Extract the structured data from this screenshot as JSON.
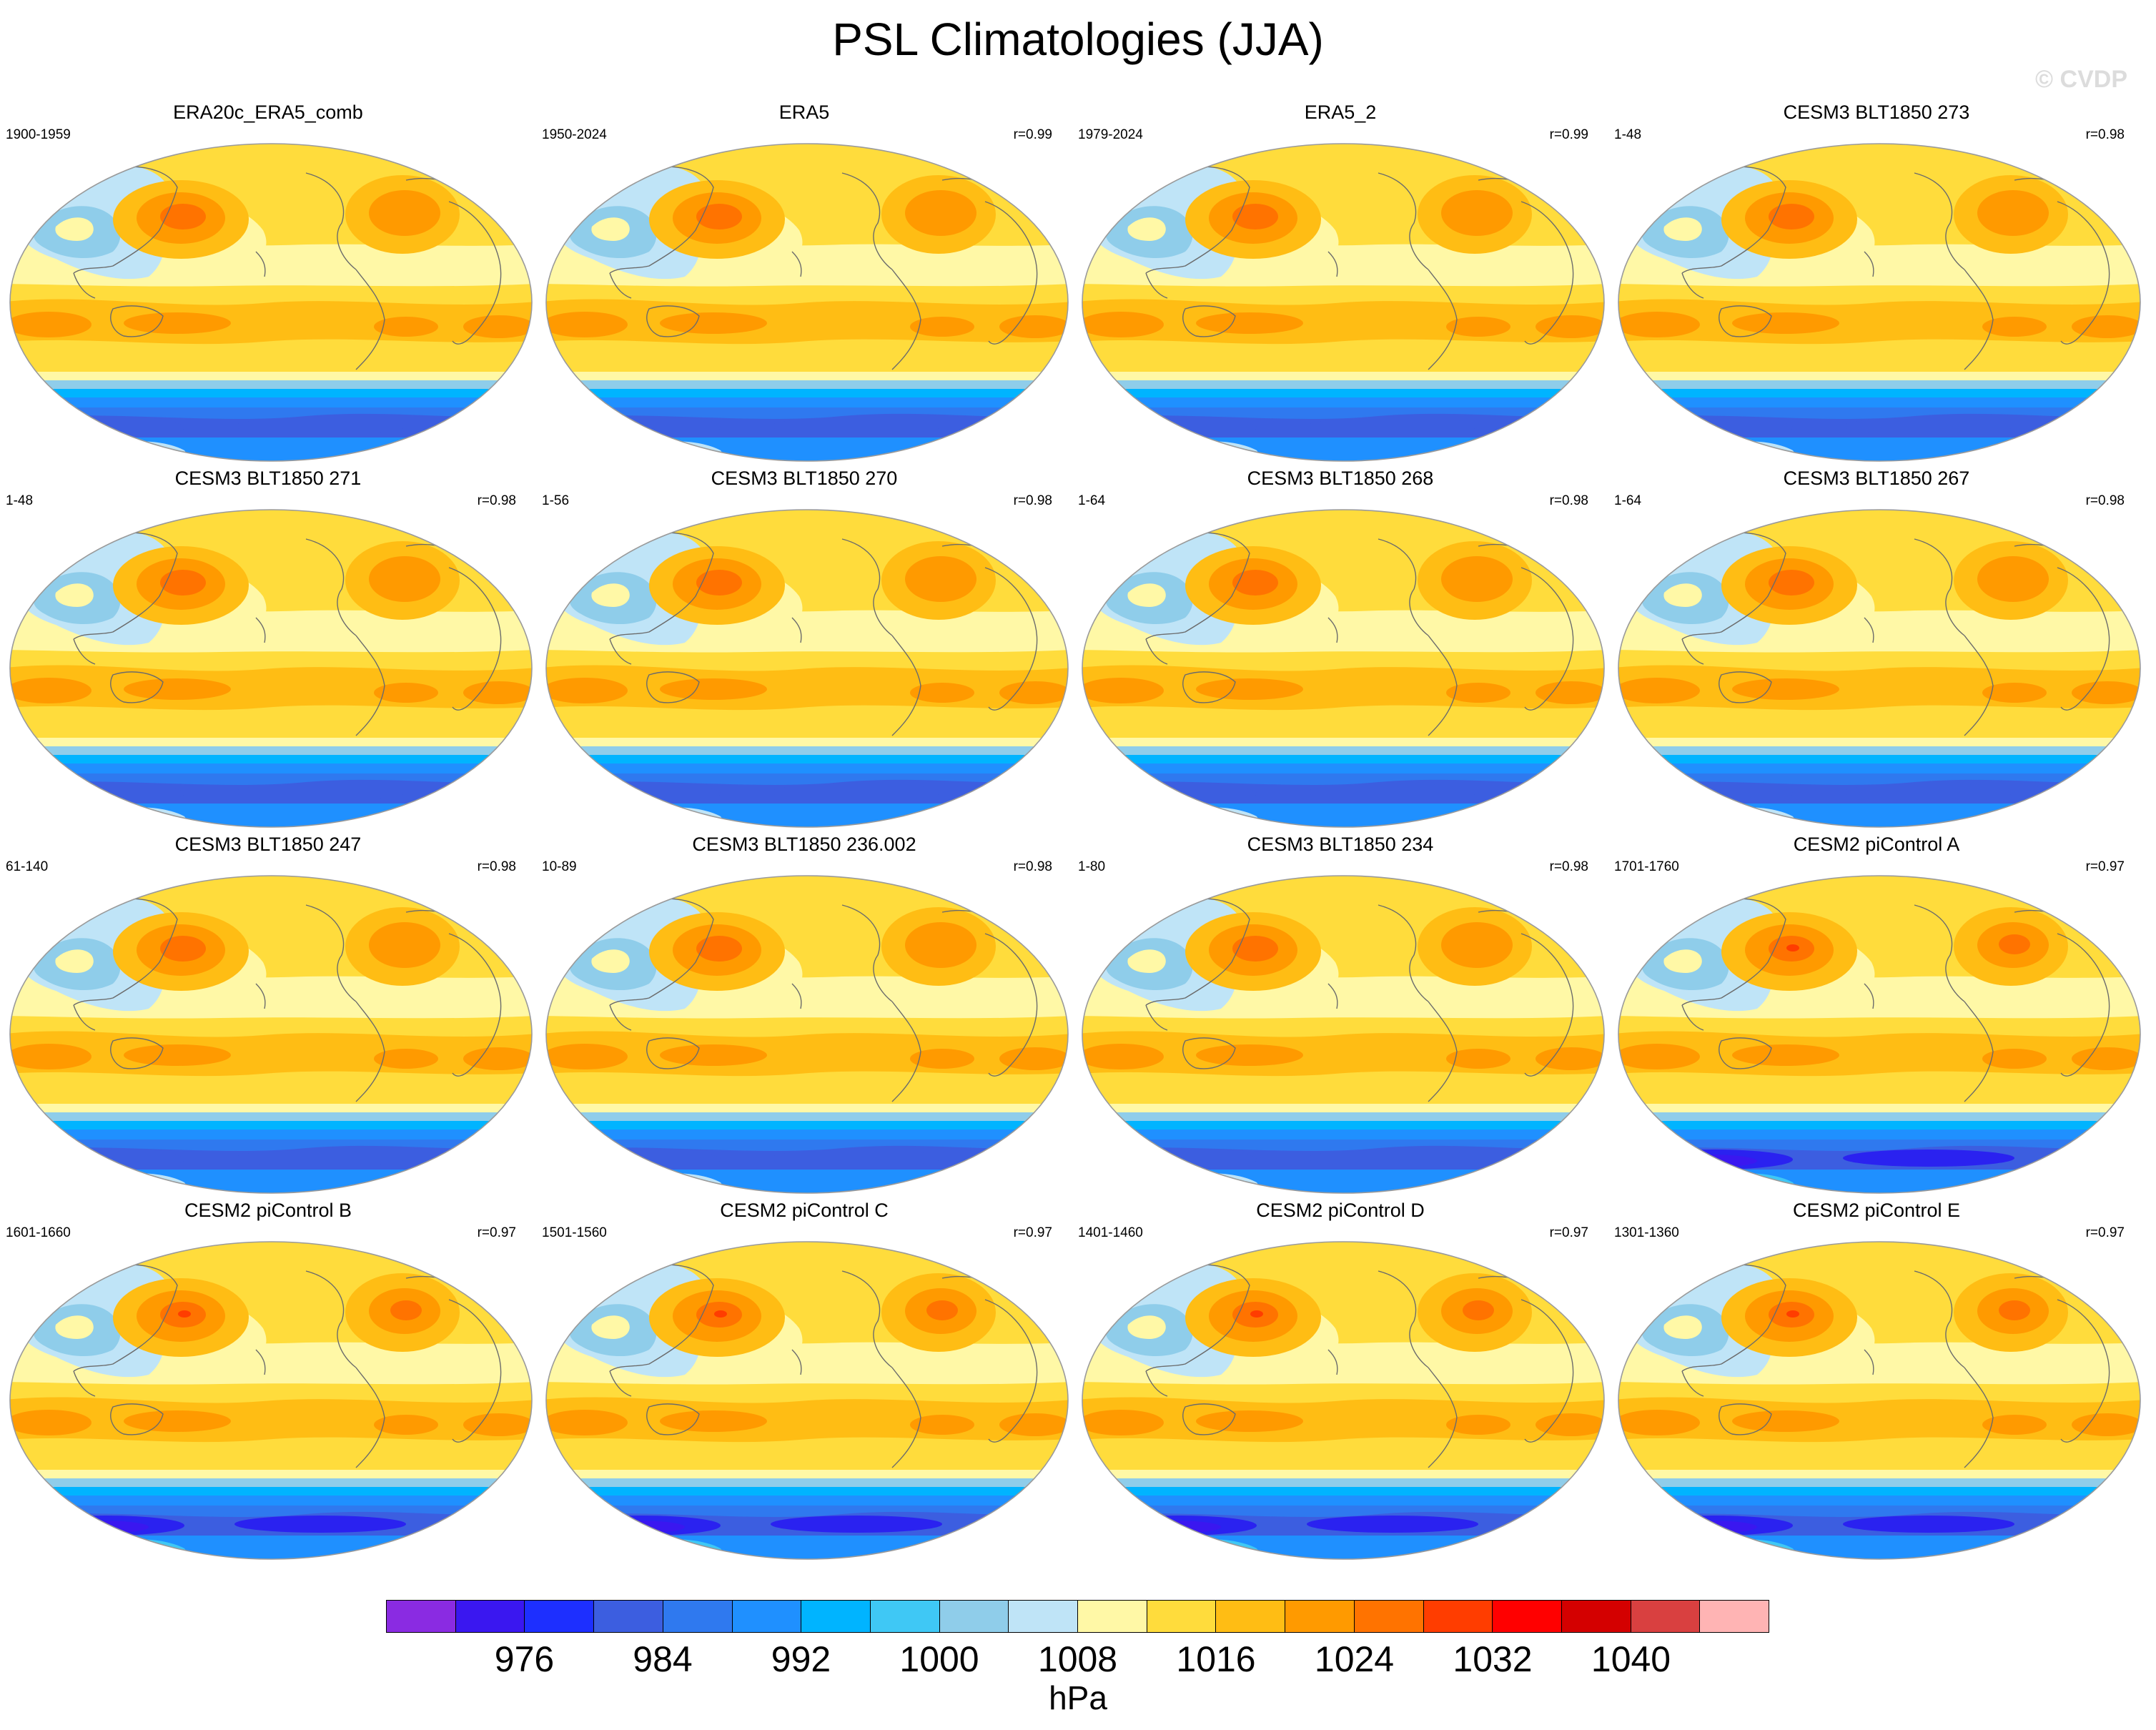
{
  "figure": {
    "title": "PSL Climatologies (JJA)",
    "credit": "© CVDP",
    "units": "hPa"
  },
  "panels": [
    {
      "title": "ERA20c_ERA5_comb",
      "years": "1900-1959",
      "corr": "",
      "variant": "obs20c"
    },
    {
      "title": "ERA5",
      "years": "1950-2024",
      "corr": "r=0.99",
      "variant": "obs"
    },
    {
      "title": "ERA5_2",
      "years": "1979-2024",
      "corr": "r=0.99",
      "variant": "obs"
    },
    {
      "title": "CESM3 BLT1850 273",
      "years": "1-48",
      "corr": "r=0.98",
      "variant": "cesm3"
    },
    {
      "title": "CESM3 BLT1850 271",
      "years": "1-48",
      "corr": "r=0.98",
      "variant": "cesm3"
    },
    {
      "title": "CESM3 BLT1850 270",
      "years": "1-56",
      "corr": "r=0.98",
      "variant": "cesm3"
    },
    {
      "title": "CESM3 BLT1850 268",
      "years": "1-64",
      "corr": "r=0.98",
      "variant": "cesm3"
    },
    {
      "title": "CESM3 BLT1850 267",
      "years": "1-64",
      "corr": "r=0.98",
      "variant": "cesm3"
    },
    {
      "title": "CESM3 BLT1850 247",
      "years": "61-140",
      "corr": "r=0.98",
      "variant": "cesm3"
    },
    {
      "title": "CESM3 BLT1850 236.002",
      "years": "10-89",
      "corr": "r=0.98",
      "variant": "cesm3"
    },
    {
      "title": "CESM3 BLT1850 234",
      "years": "1-80",
      "corr": "r=0.98",
      "variant": "cesm3"
    },
    {
      "title": "CESM2 piControl A",
      "years": "1701-1760",
      "corr": "r=0.97",
      "variant": "cesm2"
    },
    {
      "title": "CESM2 piControl B",
      "years": "1601-1660",
      "corr": "r=0.97",
      "variant": "cesm2"
    },
    {
      "title": "CESM2 piControl C",
      "years": "1501-1560",
      "corr": "r=0.97",
      "variant": "cesm2"
    },
    {
      "title": "CESM2 piControl D",
      "years": "1401-1460",
      "corr": "r=0.97",
      "variant": "cesm2"
    },
    {
      "title": "CESM2 piControl E",
      "years": "1301-1360",
      "corr": "r=0.97",
      "variant": "cesm2"
    }
  ],
  "colorbar": {
    "colors": [
      "#8a2be2",
      "#3a17f0",
      "#1d2fff",
      "#3c5ee0",
      "#2f79ef",
      "#1f90ff",
      "#00b4ff",
      "#3fc8f5",
      "#8fcdea",
      "#bfe4f7",
      "#fff8a6",
      "#ffdc3c",
      "#ffbd14",
      "#ff9a00",
      "#ff7300",
      "#ff3d00",
      "#ff0000",
      "#d40000",
      "#d94040",
      "#ffb4b4"
    ],
    "labels": [
      "976",
      "984",
      "992",
      "1000",
      "1008",
      "1016",
      "1024",
      "1032",
      "1040"
    ],
    "label_after_cells": [
      2,
      4,
      6,
      8,
      10,
      12,
      14,
      16,
      18
    ]
  }
}
